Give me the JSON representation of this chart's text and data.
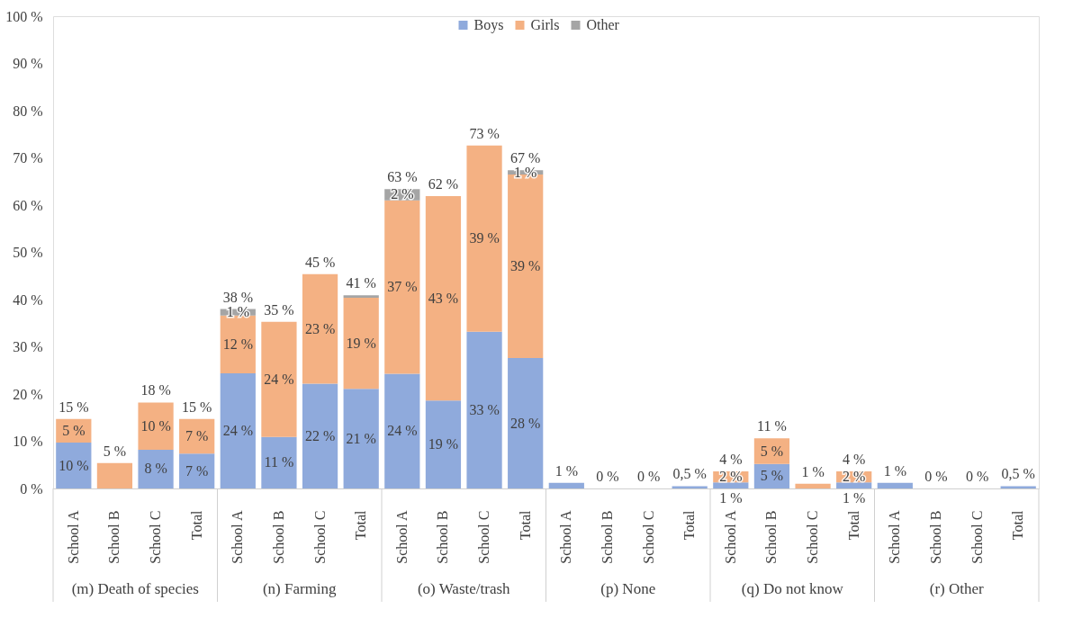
{
  "chart_data": {
    "type": "bar",
    "stacked": true,
    "categories": [
      "School A",
      "School B",
      "School C",
      "Total",
      "School A",
      "School B",
      "School C",
      "Total",
      "School A",
      "School B",
      "School C",
      "Total",
      "School A",
      "School B",
      "School C",
      "Total",
      "School A",
      "School B",
      "School C",
      "Total",
      "School A",
      "School B",
      "School C",
      "Total"
    ],
    "series": [
      {
        "name": "Boys",
        "color": "#8faadc",
        "values": [
          9.7,
          0,
          8.2,
          7.4,
          24.4,
          10.9,
          22.2,
          21.1,
          24.3,
          18.6,
          33.2,
          27.6,
          1.2,
          0,
          0,
          0.5,
          1.3,
          5.2,
          0,
          1.3,
          1.2,
          0,
          0,
          0.5
        ],
        "value_labels": [
          "10 %",
          null,
          "8 %",
          "7 %",
          "24 %",
          "11 %",
          "22 %",
          "21 %",
          "24 %",
          "19 %",
          "33 %",
          "28 %",
          null,
          null,
          null,
          null,
          "1 %",
          "5 %",
          null,
          "1 %",
          null,
          null,
          null,
          null
        ]
      },
      {
        "name": "Girls",
        "color": "#f4b183",
        "values": [
          5.0,
          5.4,
          10.0,
          7.3,
          12.2,
          24.4,
          23.2,
          19.3,
          36.7,
          43.3,
          39.4,
          38.9,
          0,
          0,
          0,
          0,
          2.3,
          5.4,
          1.0,
          2.3,
          0,
          0,
          0,
          0
        ],
        "value_labels": [
          "5 %",
          null,
          "10 %",
          "7 %",
          "12 %",
          "24 %",
          "23 %",
          "19 %",
          "37 %",
          "43 %",
          "39 %",
          "39 %",
          null,
          null,
          null,
          null,
          "2 %",
          "5 %",
          null,
          "2 %",
          null,
          null,
          null,
          null
        ]
      },
      {
        "name": "Other",
        "color": "#a5a5a5",
        "values": [
          0,
          0,
          0,
          0,
          1.4,
          0,
          0,
          0.5,
          2.4,
          0,
          0,
          0.9,
          0,
          0,
          0,
          0,
          0,
          0,
          0,
          0,
          0,
          0,
          0,
          0
        ],
        "value_labels": [
          null,
          null,
          null,
          null,
          "1 %",
          null,
          null,
          null,
          "2 %",
          null,
          null,
          "1 %",
          null,
          null,
          null,
          null,
          null,
          null,
          null,
          null,
          null,
          null,
          null,
          null
        ]
      }
    ],
    "totals": [
      "15 %",
      "5 %",
      "18 %",
      "15 %",
      "38 %",
      "35 %",
      "45 %",
      "41 %",
      "63 %",
      "62 %",
      "73 %",
      "67 %",
      "1 %",
      "0 %",
      "0 %",
      "0,5 %",
      "4 %",
      "11 %",
      "1 %",
      "4 %",
      "1 %",
      "0 %",
      "0 %",
      "0,5 %"
    ],
    "annotations": [
      "(m) Death of species",
      "(n) Farming",
      "(o) Waste/trash",
      "(p) None",
      "(q) Do not know",
      "(r) Other"
    ],
    "ylim": [
      0,
      100
    ],
    "yticks": [
      {
        "value": 0,
        "label": "0 %"
      },
      {
        "value": 10,
        "label": "10 %"
      },
      {
        "value": 20,
        "label": "20 %"
      },
      {
        "value": 30,
        "label": "30 %"
      },
      {
        "value": 40,
        "label": "40 %"
      },
      {
        "value": 50,
        "label": "50 %"
      },
      {
        "value": 60,
        "label": "60 %"
      },
      {
        "value": 70,
        "label": "70 %"
      },
      {
        "value": 80,
        "label": "80 %"
      },
      {
        "value": 90,
        "label": "90 %"
      },
      {
        "value": 100,
        "label": "100 %"
      }
    ],
    "legend": "top"
  }
}
